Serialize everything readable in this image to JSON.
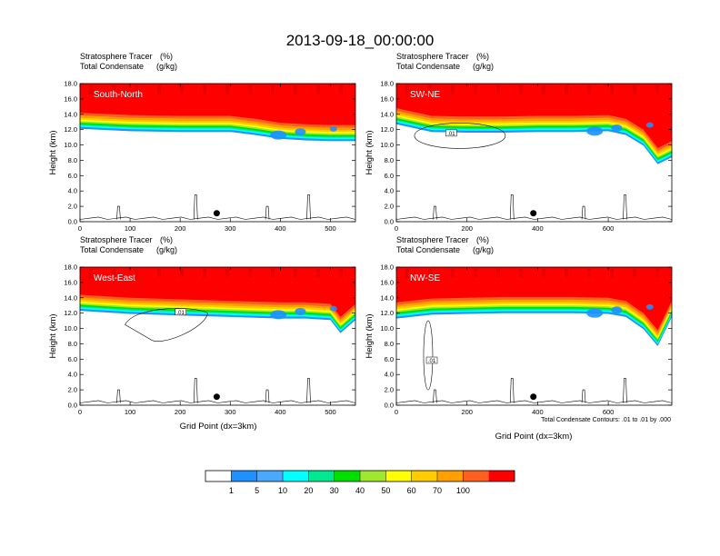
{
  "title": "2013-09-18_00:00:00",
  "panel_labels": {
    "var1": "Stratosphere Tracer",
    "var1_unit": "(%)",
    "var2": "Total Condensate",
    "var2_unit": "(g/kg)"
  },
  "xlabel": "Grid Point (dx=3km)",
  "ylabel": "Height (km)",
  "footnote": "Total Condensate Contours: .01 to .01 by .000",
  "contour_label": ".01",
  "colors": {
    "levels": [
      "#ffffff",
      "#1e90ff",
      "#4aa8ff",
      "#00ffff",
      "#00e890",
      "#00e000",
      "#a0e830",
      "#ffff00",
      "#ffcc00",
      "#ffa000",
      "#ff6020",
      "#ff0000"
    ]
  },
  "colorbar": {
    "labels": [
      "1",
      "5",
      "10",
      "20",
      "30",
      "40",
      "50",
      "60",
      "70",
      "100"
    ]
  },
  "chart_data": [
    {
      "type": "heatmap",
      "name": "South-North",
      "xlim": [
        0,
        550
      ],
      "ylim": [
        0,
        18
      ],
      "xticks": [
        "0",
        "100",
        "200",
        "300",
        "400",
        "500"
      ],
      "yticks": [
        "0.0",
        "2.0",
        "4.0",
        "6.0",
        "8.0",
        "10.0",
        "12.0",
        "14.0",
        "16.0",
        "18.0"
      ],
      "tropopause_x": [
        0,
        100,
        200,
        300,
        350,
        400,
        450,
        500,
        550
      ],
      "tropopause_km": [
        14.2,
        13.9,
        13.8,
        13.8,
        13.4,
        12.9,
        12.7,
        12.6,
        12.6
      ],
      "marker": {
        "x": 273,
        "km": 1.1
      }
    },
    {
      "type": "heatmap",
      "name": "SW-NE",
      "xlim": [
        0,
        780
      ],
      "ylim": [
        0,
        18
      ],
      "xticks": [
        "0",
        "200",
        "400",
        "600"
      ],
      "yticks": [
        "0.0",
        "2.0",
        "4.0",
        "6.0",
        "8.0",
        "10.0",
        "12.0",
        "14.0",
        "16.0",
        "18.0"
      ],
      "tropopause_x": [
        0,
        100,
        200,
        300,
        400,
        500,
        600,
        650,
        700,
        740,
        780
      ],
      "tropopause_km": [
        14.8,
        13.8,
        13.7,
        13.7,
        13.8,
        13.8,
        13.9,
        13.4,
        12.0,
        9.6,
        10.5
      ],
      "marker": {
        "x": 388,
        "km": 1.1
      }
    },
    {
      "type": "heatmap",
      "name": "West-East",
      "xlim": [
        0,
        550
      ],
      "ylim": [
        0,
        18
      ],
      "xticks": [
        "0",
        "100",
        "200",
        "300",
        "400",
        "500"
      ],
      "yticks": [
        "0.0",
        "2.0",
        "4.0",
        "6.0",
        "8.0",
        "10.0",
        "12.0",
        "14.0",
        "16.0",
        "18.0"
      ],
      "tropopause_x": [
        0,
        100,
        200,
        300,
        400,
        450,
        500,
        520,
        550
      ],
      "tropopause_km": [
        14.4,
        14.0,
        13.8,
        13.6,
        13.4,
        13.4,
        13.2,
        11.5,
        13.2
      ],
      "marker": {
        "x": 273,
        "km": 1.1
      }
    },
    {
      "type": "heatmap",
      "name": "NW-SE",
      "xlim": [
        0,
        780
      ],
      "ylim": [
        0,
        18
      ],
      "xticks": [
        "0",
        "200",
        "400",
        "600"
      ],
      "yticks": [
        "0.0",
        "2.0",
        "4.0",
        "6.0",
        "8.0",
        "10.0",
        "12.0",
        "14.0",
        "16.0",
        "18.0"
      ],
      "tropopause_x": [
        0,
        100,
        200,
        300,
        400,
        500,
        600,
        650,
        700,
        740,
        780
      ],
      "tropopause_km": [
        13.4,
        13.9,
        14.0,
        14.1,
        14.1,
        14.1,
        14.0,
        13.6,
        12.0,
        9.8,
        13.6
      ],
      "marker": {
        "x": 388,
        "km": 1.1
      }
    }
  ]
}
